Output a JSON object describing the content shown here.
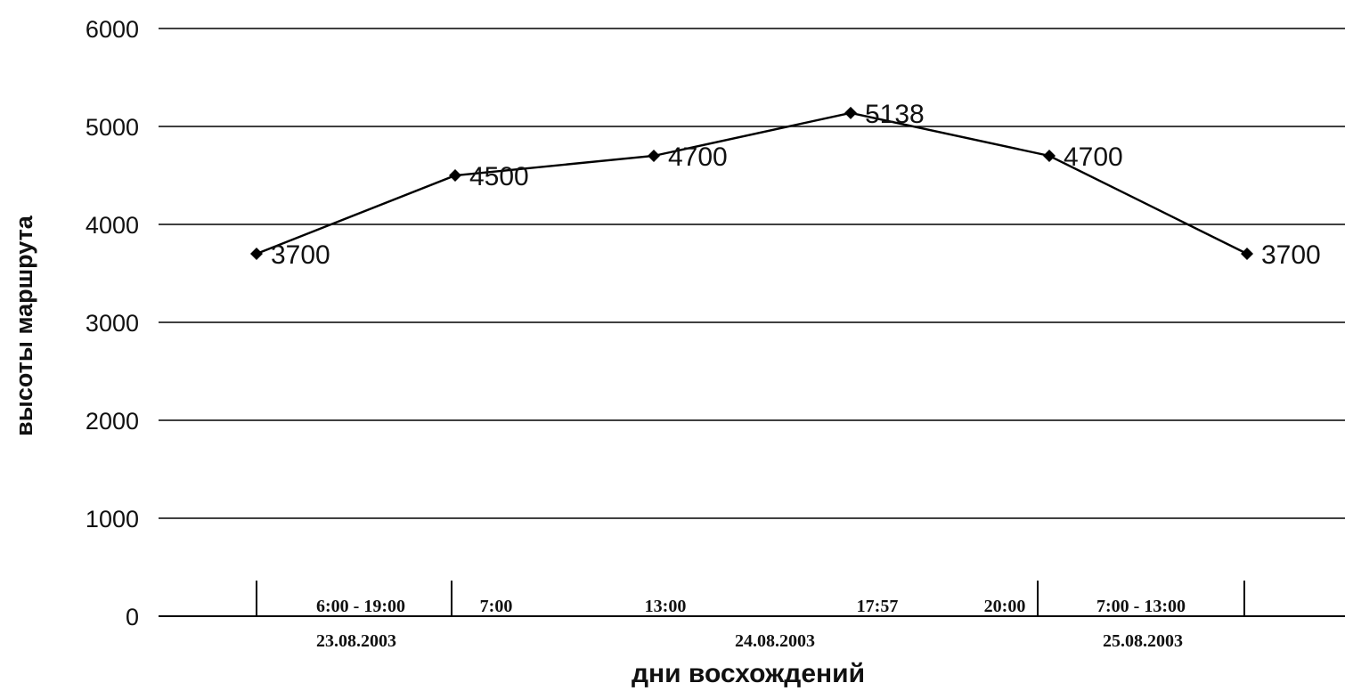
{
  "chart_data": {
    "type": "line",
    "title": "",
    "xlabel": "дни восхождений",
    "ylabel": "высоты маршрута",
    "ylim": [
      0,
      6000
    ],
    "yticks": [
      0,
      1000,
      2000,
      3000,
      4000,
      5000,
      6000
    ],
    "grid": true,
    "categories": [
      "6:00 - 19:00",
      "7:00",
      "13:00",
      "17:57",
      "20:00",
      "7:00 - 13:00"
    ],
    "dates": [
      "23.08.2003",
      "24.08.2003",
      "25.08.2003"
    ],
    "series": [
      {
        "values": [
          3700,
          4500,
          4700,
          5138,
          4700,
          3700
        ],
        "data_labels": [
          "3700",
          "4500",
          "4700",
          "5138",
          "4700",
          "3700"
        ],
        "color": "#000000"
      }
    ]
  }
}
